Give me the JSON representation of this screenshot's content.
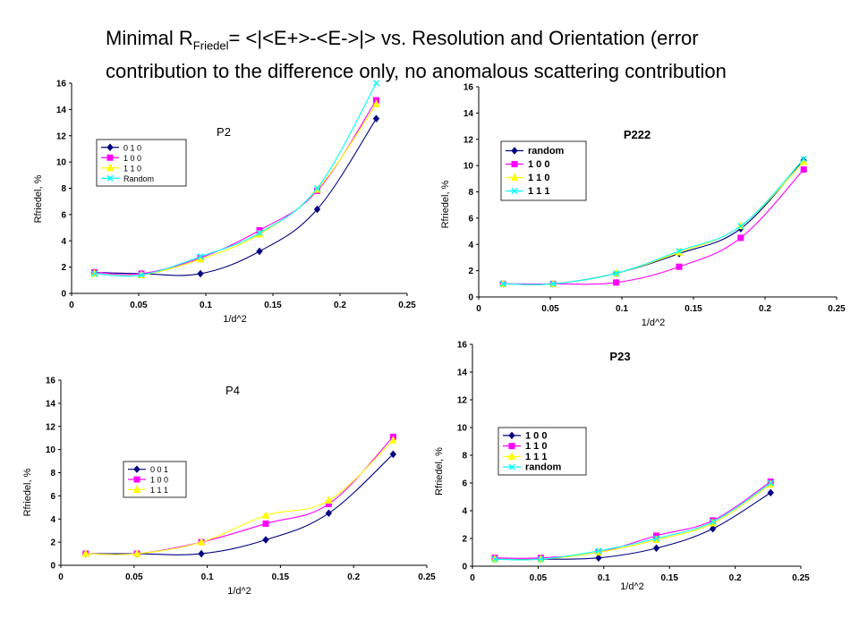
{
  "title": {
    "prefix": "Minimal R",
    "subscript": "Friedel",
    "suffix": "= <|<E+>-<E->|> vs. Resolution and Orientation (error contribution to the difference only, no anomalous scattering contribution"
  },
  "colors": {
    "dark_blue": "#000080",
    "magenta": "#ff00ff",
    "yellow": "#ffff00",
    "cyan": "#00ffff",
    "orange_dash": "#e08000"
  },
  "chart_data": [
    {
      "type": "line",
      "title": "P2",
      "xlabel": "1/d^2",
      "ylabel": "Rfriedel, %",
      "xlim": [
        0,
        0.25
      ],
      "ylim": [
        0,
        16
      ],
      "xticks": [
        "0",
        "0.05",
        "0.1",
        "0.15",
        "0.2",
        "0.25"
      ],
      "yticks": [
        "0",
        "2",
        "4",
        "6",
        "8",
        "10",
        "12",
        "14",
        "16"
      ],
      "x": [
        0.017,
        0.052,
        0.096,
        0.14,
        0.183,
        0.227
      ],
      "series": [
        {
          "name": "0 1 0",
          "color": "#000080",
          "marker": "diamond",
          "values": [
            1.6,
            1.5,
            1.5,
            3.2,
            6.4,
            13.3
          ]
        },
        {
          "name": "1 0 0",
          "color": "#ff00ff",
          "marker": "square",
          "values": [
            1.6,
            1.5,
            2.7,
            4.8,
            7.8,
            14.7
          ]
        },
        {
          "name": "1 1 0",
          "color": "#ffff00",
          "marker": "triangle",
          "values": [
            1.5,
            1.4,
            2.6,
            4.5,
            7.9,
            14.4
          ]
        },
        {
          "name": "Random",
          "color": "#00ffff",
          "marker": "x",
          "values": [
            1.5,
            1.4,
            2.8,
            4.6,
            8.0,
            16.0
          ]
        }
      ],
      "legend": "left",
      "legend_style": "small"
    },
    {
      "type": "line",
      "title": "P222",
      "xlabel": "1/d^2",
      "ylabel": "Rfriedel, %",
      "xlim": [
        0,
        0.25
      ],
      "ylim": [
        0,
        16
      ],
      "xticks": [
        "0",
        "0.05",
        "0.1",
        "0.15",
        "0.2",
        "0.25"
      ],
      "yticks": [
        "0",
        "2",
        "4",
        "6",
        "8",
        "10",
        "12",
        "14",
        "16"
      ],
      "x": [
        0.017,
        0.052,
        0.096,
        0.14,
        0.183,
        0.227
      ],
      "series": [
        {
          "name": "random",
          "color": "#000080",
          "marker": "diamond",
          "values": [
            1.0,
            1.0,
            1.8,
            3.3,
            5.2,
            10.4
          ]
        },
        {
          "name": "1 0 0",
          "color": "#ff00ff",
          "marker": "square",
          "values": [
            1.0,
            1.0,
            1.1,
            2.3,
            4.5,
            9.7
          ]
        },
        {
          "name": "1 1 0",
          "color": "#ffff00",
          "marker": "triangle",
          "values": [
            1.0,
            1.0,
            1.8,
            3.4,
            5.4,
            10.3
          ]
        },
        {
          "name": "1 1 1",
          "color": "#00ffff",
          "marker": "x",
          "values": [
            1.0,
            1.0,
            1.8,
            3.5,
            5.4,
            10.5
          ]
        }
      ],
      "legend": "left",
      "legend_style": "bold"
    },
    {
      "type": "line",
      "title": "P4",
      "xlabel": "1/d^2",
      "ylabel": "Rfriedel, %",
      "xlim": [
        0,
        0.25
      ],
      "ylim": [
        0,
        16
      ],
      "xticks": [
        "0",
        "0.05",
        "0.1",
        "0.15",
        "0.2",
        "0.25"
      ],
      "yticks": [
        "0",
        "2",
        "4",
        "6",
        "8",
        "10",
        "12",
        "14",
        "16"
      ],
      "x": [
        0.017,
        0.052,
        0.096,
        0.14,
        0.183,
        0.227
      ],
      "series": [
        {
          "name": "0 0 1",
          "color": "#000080",
          "marker": "diamond",
          "values": [
            1.0,
            1.0,
            1.0,
            2.2,
            4.5,
            9.6
          ]
        },
        {
          "name": "1 0 0",
          "color": "#ff00ff",
          "marker": "square",
          "values": [
            1.0,
            1.0,
            2.0,
            3.6,
            5.3,
            11.1
          ]
        },
        {
          "name": "1 1 1",
          "color": "#ffff00",
          "marker": "triangle",
          "values": [
            1.0,
            1.0,
            2.0,
            4.3,
            5.6,
            10.8
          ]
        }
      ],
      "legend": "left",
      "legend_style": "small"
    },
    {
      "type": "line",
      "title": "P23",
      "xlabel": "1/d^2",
      "ylabel": "Rfriedel, %",
      "xlim": [
        0,
        0.25
      ],
      "ylim": [
        0,
        16
      ],
      "xticks": [
        "0",
        "0.05",
        "0.1",
        "0.15",
        "0.2",
        "0.25"
      ],
      "yticks": [
        "0",
        "2",
        "4",
        "6",
        "8",
        "10",
        "12",
        "14",
        "16"
      ],
      "x": [
        0.017,
        0.052,
        0.096,
        0.14,
        0.183,
        0.227
      ],
      "series": [
        {
          "name": "1 0 0",
          "color": "#000080",
          "marker": "diamond",
          "values": [
            0.5,
            0.5,
            0.6,
            1.3,
            2.7,
            5.3
          ]
        },
        {
          "name": "1 1 0",
          "color": "#ff00ff",
          "marker": "square",
          "values": [
            0.6,
            0.6,
            1.0,
            2.2,
            3.3,
            6.1
          ]
        },
        {
          "name": "1 1 1",
          "color": "#ffff00",
          "marker": "triangle",
          "values": [
            0.5,
            0.5,
            1.0,
            1.9,
            3.1,
            5.9
          ]
        },
        {
          "name": "random",
          "color": "#00ffff",
          "marker": "x",
          "values": [
            0.5,
            0.5,
            1.1,
            2.0,
            3.2,
            6.0
          ]
        }
      ],
      "legend": "left",
      "legend_style": "bold"
    }
  ]
}
